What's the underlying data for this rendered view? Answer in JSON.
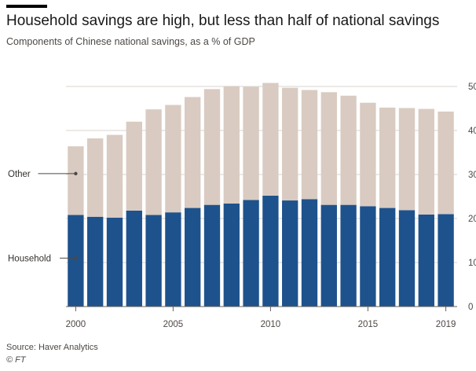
{
  "title": "Household savings are high, but less than half of national savings",
  "subtitle": "Components of Chinese national savings, as a % of GDP",
  "source": "Source: Haver Analytics",
  "brand": "© FT",
  "colors": {
    "household": "#1e528c",
    "other": "#d9cbc1",
    "grid": "#d9d3cf",
    "axis": "#66605c"
  },
  "chart_data": {
    "type": "bar",
    "stacked": true,
    "categories": [
      "2000",
      "2001",
      "2002",
      "2003",
      "2004",
      "2005",
      "2006",
      "2007",
      "2008",
      "2009",
      "2010",
      "2011",
      "2012",
      "2013",
      "2014",
      "2015",
      "2016",
      "2017",
      "2018",
      "2019"
    ],
    "series": [
      {
        "name": "Household",
        "values": [
          20.8,
          20.4,
          20.2,
          21.8,
          20.8,
          21.4,
          22.4,
          23.1,
          23.4,
          24.2,
          25.2,
          24.1,
          24.4,
          23.1,
          23.1,
          22.8,
          22.4,
          21.9,
          20.9,
          21.0
        ]
      },
      {
        "name": "Other",
        "values": [
          15.6,
          17.8,
          18.8,
          20.2,
          24.0,
          24.4,
          25.2,
          26.3,
          26.7,
          25.7,
          25.6,
          25.6,
          24.8,
          25.6,
          24.8,
          23.5,
          22.8,
          23.2,
          24.0,
          23.3
        ]
      }
    ],
    "ylim": [
      0,
      50
    ],
    "yticks": [
      0,
      10,
      20,
      30,
      40,
      50
    ],
    "xtick_labels": [
      "2000",
      "2005",
      "2010",
      "2015",
      "2019"
    ],
    "legend_position": "left, inline labels",
    "grid": true
  }
}
